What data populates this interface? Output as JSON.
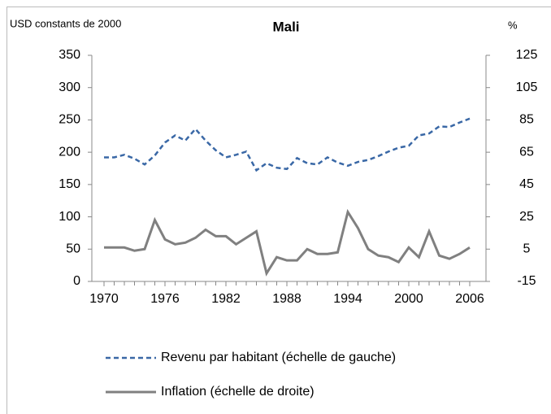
{
  "chart_data": {
    "type": "line",
    "title": "Mali",
    "y_label": "USD constants de 2000",
    "y2_label": "%",
    "x": [
      1970,
      1971,
      1972,
      1973,
      1974,
      1975,
      1976,
      1977,
      1978,
      1979,
      1980,
      1981,
      1982,
      1983,
      1984,
      1985,
      1986,
      1987,
      1988,
      1989,
      1990,
      1991,
      1992,
      1993,
      1994,
      1995,
      1996,
      1997,
      1998,
      1999,
      2000,
      2001,
      2002,
      2003,
      2004,
      2005,
      2006
    ],
    "xlim": [
      1970,
      2006
    ],
    "xticks": [
      1970,
      1976,
      1982,
      1988,
      1994,
      2000,
      2006
    ],
    "ylim": [
      0,
      350
    ],
    "yticks": [
      0,
      50,
      100,
      150,
      200,
      250,
      300,
      350
    ],
    "y2lim": [
      -15,
      125
    ],
    "y2ticks": [
      -15,
      5,
      25,
      45,
      65,
      85,
      105,
      125
    ],
    "legend": "bottom",
    "grid": false,
    "series": [
      {
        "name": "Revenu par habitant (échelle de gauche)",
        "color": "#3a68a6",
        "dashed": true,
        "values": [
          192,
          192,
          196,
          190,
          181,
          195,
          215,
          226,
          218,
          236,
          218,
          203,
          192,
          196,
          201,
          172,
          183,
          176,
          174,
          191,
          183,
          181,
          192,
          184,
          179,
          185,
          188,
          194,
          201,
          207,
          210,
          226,
          229,
          240,
          239,
          246,
          252
        ]
      },
      {
        "name": "Inflation (échelle de droite)",
        "color": "#808080",
        "axis": "y2",
        "values": [
          6,
          6,
          6,
          4,
          5,
          23,
          11,
          8,
          9,
          12,
          17,
          13,
          13,
          8,
          12,
          16,
          -10,
          0,
          -2,
          -2,
          5,
          2,
          2,
          3,
          28,
          18,
          5,
          1,
          0,
          -3,
          6,
          0,
          16,
          1,
          -1,
          2,
          6
        ]
      }
    ]
  }
}
